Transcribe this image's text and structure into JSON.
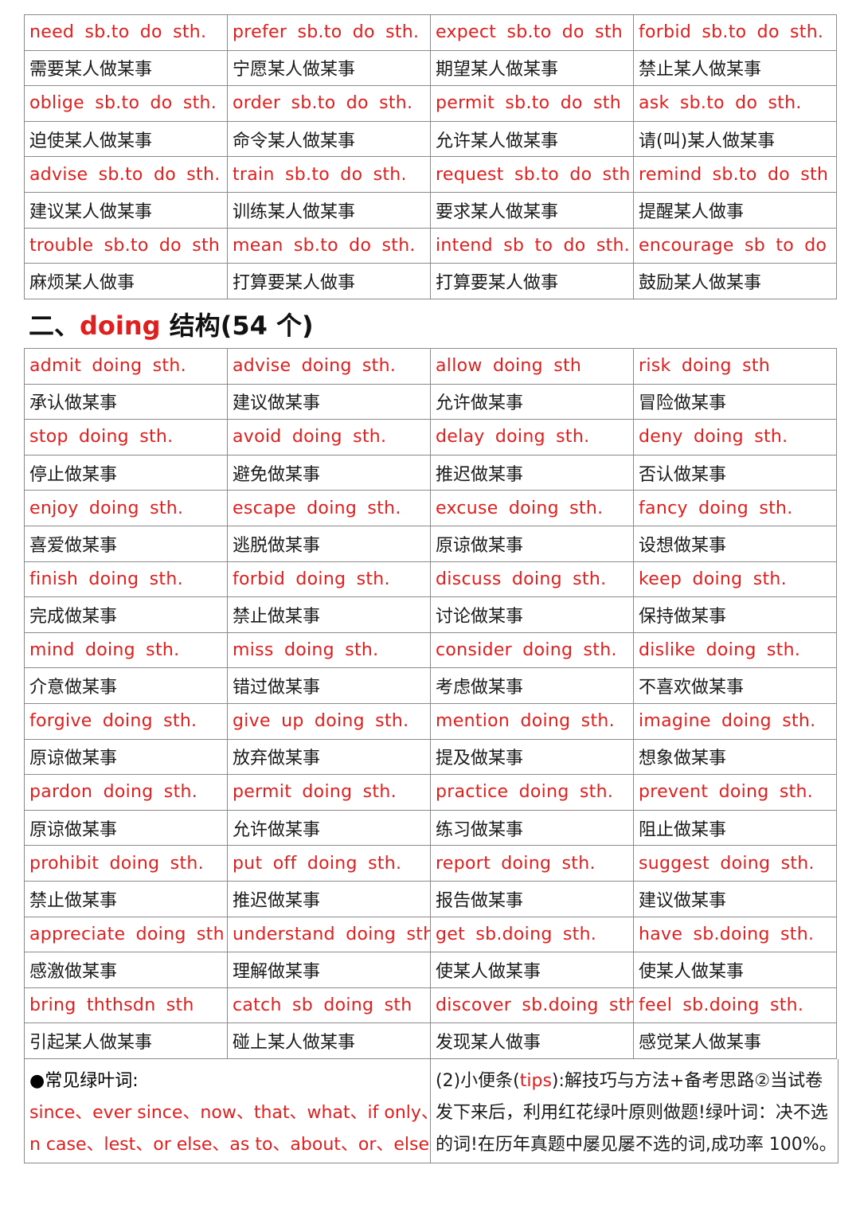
{
  "colors": {
    "accent_red": "#e0201e",
    "text": "#1a1a1a",
    "border": "#8a8a8a"
  },
  "table1": [
    {
      "en": [
        "need sb.to do sth.",
        "prefer sb.to do sth.",
        "expect sb.to do sth",
        "forbid sb.to do sth."
      ],
      "zh": [
        "需要某人做某事",
        "宁愿某人做某事",
        "期望某人做某事",
        "禁止某人做某事"
      ]
    },
    {
      "en": [
        "oblige sb.to do sth.",
        "order sb.to do sth.",
        "permit sb.to do sth",
        "ask sb.to do sth."
      ],
      "zh": [
        "迫使某人做某事",
        "命令某人做某事",
        "允许某人做某事",
        "请(叫)某人做某事"
      ]
    },
    {
      "en": [
        "advise sb.to do sth.",
        "train sb.to do sth.",
        "request sb.to do sth",
        "remind sb.to do sth"
      ],
      "zh": [
        "建议某人做某事",
        "训练某人做某事",
        "要求某人做某事",
        "提醒某人做事"
      ]
    },
    {
      "en": [
        "trouble sb.to do sth",
        "mean sb.to do sth.",
        "intend sb to do sth.",
        "encourage sb to do"
      ],
      "zh": [
        "麻烦某人做事",
        "打算要某人做事",
        "打算要某人做事",
        "鼓励某人做某事"
      ]
    }
  ],
  "heading": {
    "prefix": "二、",
    "keyword": "doing",
    "suffix": " 结构(54 个)"
  },
  "table2": [
    {
      "en": [
        "admit doing sth.",
        "advise doing sth.",
        "allow doing sth",
        "risk doing sth"
      ],
      "zh": [
        "承认做某事",
        "建议做某事",
        "允许做某事",
        "冒险做某事"
      ]
    },
    {
      "en": [
        "stop doing sth.",
        "avoid doing sth.",
        "delay doing sth.",
        "deny doing sth."
      ],
      "zh": [
        "停止做某事",
        "避免做某事",
        "推迟做某事",
        "否认做某事"
      ]
    },
    {
      "en": [
        "enjoy doing sth.",
        "escape doing sth.",
        "excuse doing sth.",
        "fancy doing sth."
      ],
      "zh": [
        "喜爱做某事",
        "逃脱做某事",
        "原谅做某事",
        "设想做某事"
      ]
    },
    {
      "en": [
        "finish doing sth.",
        "forbid doing sth.",
        "discuss doing sth.",
        "keep doing sth."
      ],
      "zh": [
        "完成做某事",
        "禁止做某事",
        "讨论做某事",
        "保持做某事"
      ]
    },
    {
      "en": [
        "mind doing sth.",
        "miss doing sth.",
        "consider doing sth.",
        "dislike doing sth."
      ],
      "zh": [
        "介意做某事",
        "错过做某事",
        "考虑做某事",
        "不喜欢做某事"
      ]
    },
    {
      "en": [
        "forgive doing sth.",
        "give up doing sth.",
        "mention doing sth.",
        "imagine doing sth."
      ],
      "zh": [
        "原谅做某事",
        "放弃做某事",
        "提及做某事",
        "想象做某事"
      ]
    },
    {
      "en": [
        "pardon doing sth.",
        "permit doing sth.",
        "practice doing sth.",
        "prevent doing sth."
      ],
      "zh": [
        "原谅做某事",
        "允许做某事",
        "练习做某事",
        "阻止做某事"
      ]
    },
    {
      "en": [
        "prohibit doing sth.",
        "put off doing sth.",
        "report doing sth.",
        "suggest doing sth."
      ],
      "zh": [
        "禁止做某事",
        "推迟做某事",
        "报告做某事",
        "建议做某事"
      ]
    },
    {
      "en": [
        "appreciate doing sth",
        "understand doing sth",
        "get sb.doing sth.",
        "have sb.doing sth."
      ],
      "zh": [
        "感激做某事",
        "理解做某事",
        "使某人做某事",
        "使某人做某事"
      ]
    },
    {
      "en": [
        "bring ththsdn sth",
        "catch sb doing sth",
        "discover sb.doing sth",
        "feel sb.doing sth."
      ],
      "zh": [
        "引起某人做某事",
        "碰上某人做某事",
        "发现某人做事",
        "感觉某人做某事"
      ]
    }
  ],
  "bottom": {
    "left_title": "●常见绿叶词:",
    "left_line1": "since、ever since、now、that、what、if only、i",
    "left_line2": "n case、lest、or else、as to、about、or、else",
    "right_pre": "(2)小便条(",
    "right_tips": "tips",
    "right_post": "):解技巧与方法+备考思路②当试卷",
    "right_line2": "发下来后，利用红花绿叶原则做题!绿叶词：决不选",
    "right_line3": "的词!在历年真题中屡见屡不选的词,成功率 100%。"
  }
}
